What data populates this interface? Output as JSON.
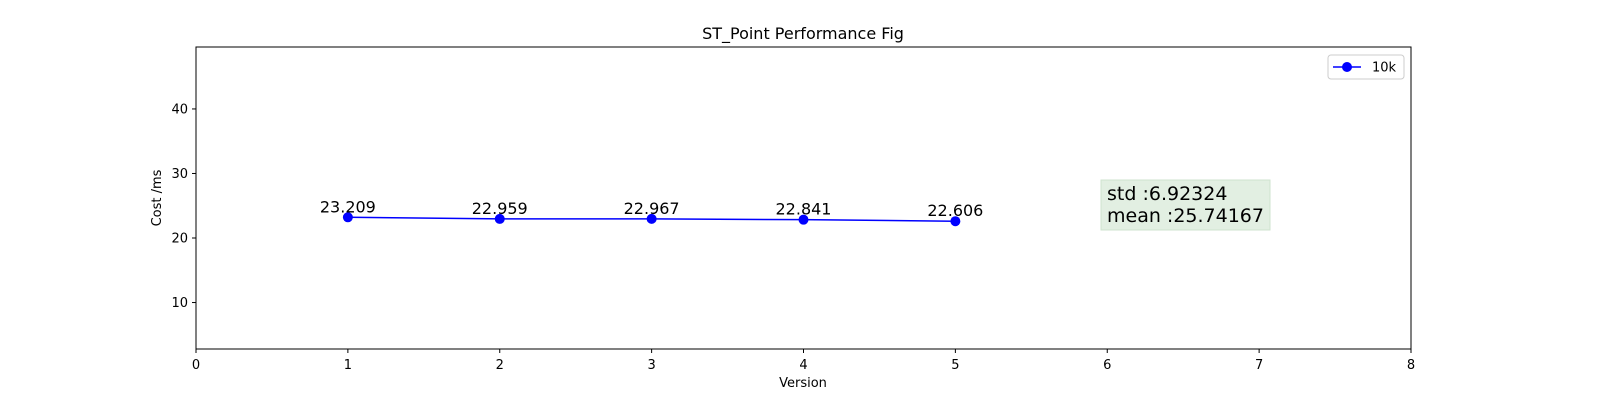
{
  "chart_data": {
    "type": "line",
    "title": "ST_Point Performance Fig",
    "xlabel": "Version",
    "ylabel": "Cost /ms",
    "xlim": [
      0,
      8
    ],
    "ylim": [
      2.8,
      49.6
    ],
    "xticks": [
      0,
      1,
      2,
      3,
      4,
      5,
      6,
      7,
      8
    ],
    "yticks": [
      10,
      20,
      30,
      40
    ],
    "grid": false,
    "legend_position": "upper right",
    "series": [
      {
        "name": "10k",
        "color": "#0000ff",
        "marker": "circle",
        "x": [
          1,
          2,
          3,
          4,
          5
        ],
        "y": [
          23.209,
          22.959,
          22.967,
          22.841,
          22.606
        ],
        "labels": [
          "23.209",
          "22.959",
          "22.967",
          "22.841",
          "22.606"
        ]
      }
    ],
    "annotation": {
      "lines": [
        "std :6.92324",
        "mean :25.74167"
      ],
      "background": "#e2efe2"
    }
  }
}
